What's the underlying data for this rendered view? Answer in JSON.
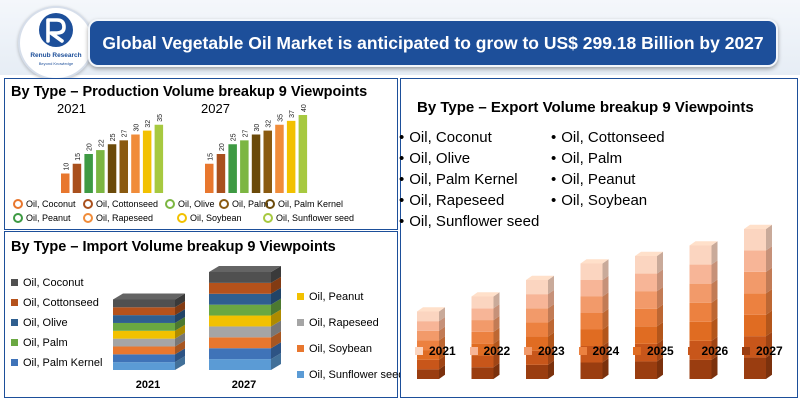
{
  "header": {
    "logo_name": "Renub Research",
    "logo_tagline": "Beyond Knowledge",
    "title": "Global Vegetable Oil Market is anticipated to grow to US$ 299.18 Billion by 2027"
  },
  "production_panel": {
    "title": "By Type – Production Volume breakup 9 Viewpoints",
    "legend": [
      {
        "label": "Oil, Coconut",
        "color": "#e8772e"
      },
      {
        "label": "Oil, Cottonseed",
        "color": "#a9501d"
      },
      {
        "label": "Oil, Olive",
        "color": "#7cb642"
      },
      {
        "label": "Oil, Palm",
        "color": "#8a5a10"
      },
      {
        "label": "Oil, Palm Kernel",
        "color": "#6b4a0a"
      },
      {
        "label": "Oil, Peanut",
        "color": "#3e9a43"
      },
      {
        "label": "Oil, Rapeseed",
        "color": "#f08c3a"
      },
      {
        "label": "Oil, Soybean",
        "color": "#f2c100"
      },
      {
        "label": "Oil, Sunflower seed",
        "color": "#a7c940"
      }
    ]
  },
  "import_panel": {
    "title": "By Type – Import Volume breakup 9 Viewpoints",
    "legend_left": [
      {
        "label": "Oil, Coconut",
        "color": "#505050"
      },
      {
        "label": "Oil, Cottonseed",
        "color": "#b5521b"
      },
      {
        "label": "Oil, Olive",
        "color": "#2f5f8f"
      },
      {
        "label": "Oil, Palm",
        "color": "#6aa842"
      },
      {
        "label": "Oil, Palm Kernel",
        "color": "#3f73b8"
      }
    ],
    "legend_right": [
      {
        "label": "Oil, Peanut",
        "color": "#f2c100"
      },
      {
        "label": "Oil, Rapeseed",
        "color": "#a5a5a5"
      },
      {
        "label": "Oil, Soybean",
        "color": "#e8772e"
      },
      {
        "label": "Oil, Sunflower seed",
        "color": "#5b9bd5"
      }
    ]
  },
  "export_panel": {
    "title": "By Type – Export Volume breakup 9 Viewpoints",
    "bullets_left": [
      "Oil, Coconut",
      "Oil, Olive",
      "Oil, Palm Kernel",
      "Oil, Rapeseed",
      "Oil, Sunflower seed"
    ],
    "bullets_right": [
      "Oil, Cottonseed",
      "Oil, Palm",
      "Oil, Peanut",
      "Oil, Soybean"
    ],
    "legend_colors": [
      "#fbd5c0",
      "#f7b597",
      "#f29a6a",
      "#ec8140",
      "#e06c22",
      "#c8561a",
      "#9a3d10"
    ]
  },
  "chart_data": [
    {
      "type": "bar",
      "title": "2021",
      "categories": [
        "Oil, Coconut",
        "Oil, Cottonseed",
        "Oil, Olive",
        "Oil, Palm",
        "Oil, Palm Kernel",
        "Oil, Peanut",
        "Oil, Rapeseed",
        "Oil, Soybean",
        "Oil, Sunflower seed"
      ],
      "values": [
        10,
        15,
        20,
        22,
        25,
        27,
        30,
        32,
        35
      ],
      "colors": [
        "#e8772e",
        "#a9501d",
        "#3e9a43",
        "#7cb642",
        "#6b4a0a",
        "#8a5a10",
        "#f08c3a",
        "#f2c100",
        "#a7c940"
      ]
    },
    {
      "type": "bar",
      "title": "2027",
      "categories": [
        "Oil, Coconut",
        "Oil, Cottonseed",
        "Oil, Olive",
        "Oil, Palm",
        "Oil, Palm Kernel",
        "Oil, Peanut",
        "Oil, Rapeseed",
        "Oil, Soybean",
        "Oil, Sunflower seed"
      ],
      "values": [
        15,
        20,
        25,
        27,
        30,
        32,
        35,
        37,
        40
      ],
      "colors": [
        "#e8772e",
        "#a9501d",
        "#3e9a43",
        "#7cb642",
        "#6b4a0a",
        "#8a5a10",
        "#f08c3a",
        "#f2c100",
        "#a7c940"
      ]
    },
    {
      "type": "bar",
      "title": "",
      "categories": [
        "2021",
        "2027"
      ],
      "series": [
        {
          "name": "Oil, Sunflower seed",
          "color": "#5b9bd5",
          "values": [
            1,
            1
          ]
        },
        {
          "name": "Oil, Palm Kernel",
          "color": "#3f73b8",
          "values": [
            1,
            1
          ]
        },
        {
          "name": "Oil, Soybean",
          "color": "#e8772e",
          "values": [
            1,
            1
          ]
        },
        {
          "name": "Oil, Rapeseed",
          "color": "#a5a5a5",
          "values": [
            1,
            1
          ]
        },
        {
          "name": "Oil, Peanut",
          "color": "#f2c100",
          "values": [
            1,
            1
          ]
        },
        {
          "name": "Oil, Palm",
          "color": "#6aa842",
          "values": [
            1,
            1
          ]
        },
        {
          "name": "Oil, Olive",
          "color": "#2f5f8f",
          "values": [
            1,
            1
          ]
        },
        {
          "name": "Oil, Cottonseed",
          "color": "#b5521b",
          "values": [
            1,
            1
          ]
        },
        {
          "name": "Oil, Coconut",
          "color": "#505050",
          "values": [
            1,
            1
          ]
        }
      ],
      "stacked": true,
      "total_ratio": [
        0.72,
        1.0
      ]
    },
    {
      "type": "bar",
      "title": "",
      "categories": [
        "2021",
        "2022",
        "2023",
        "2024",
        "2025",
        "2026",
        "2027"
      ],
      "values": [
        0.45,
        0.55,
        0.66,
        0.77,
        0.82,
        0.89,
        1.0
      ],
      "note_relative": true
    }
  ]
}
